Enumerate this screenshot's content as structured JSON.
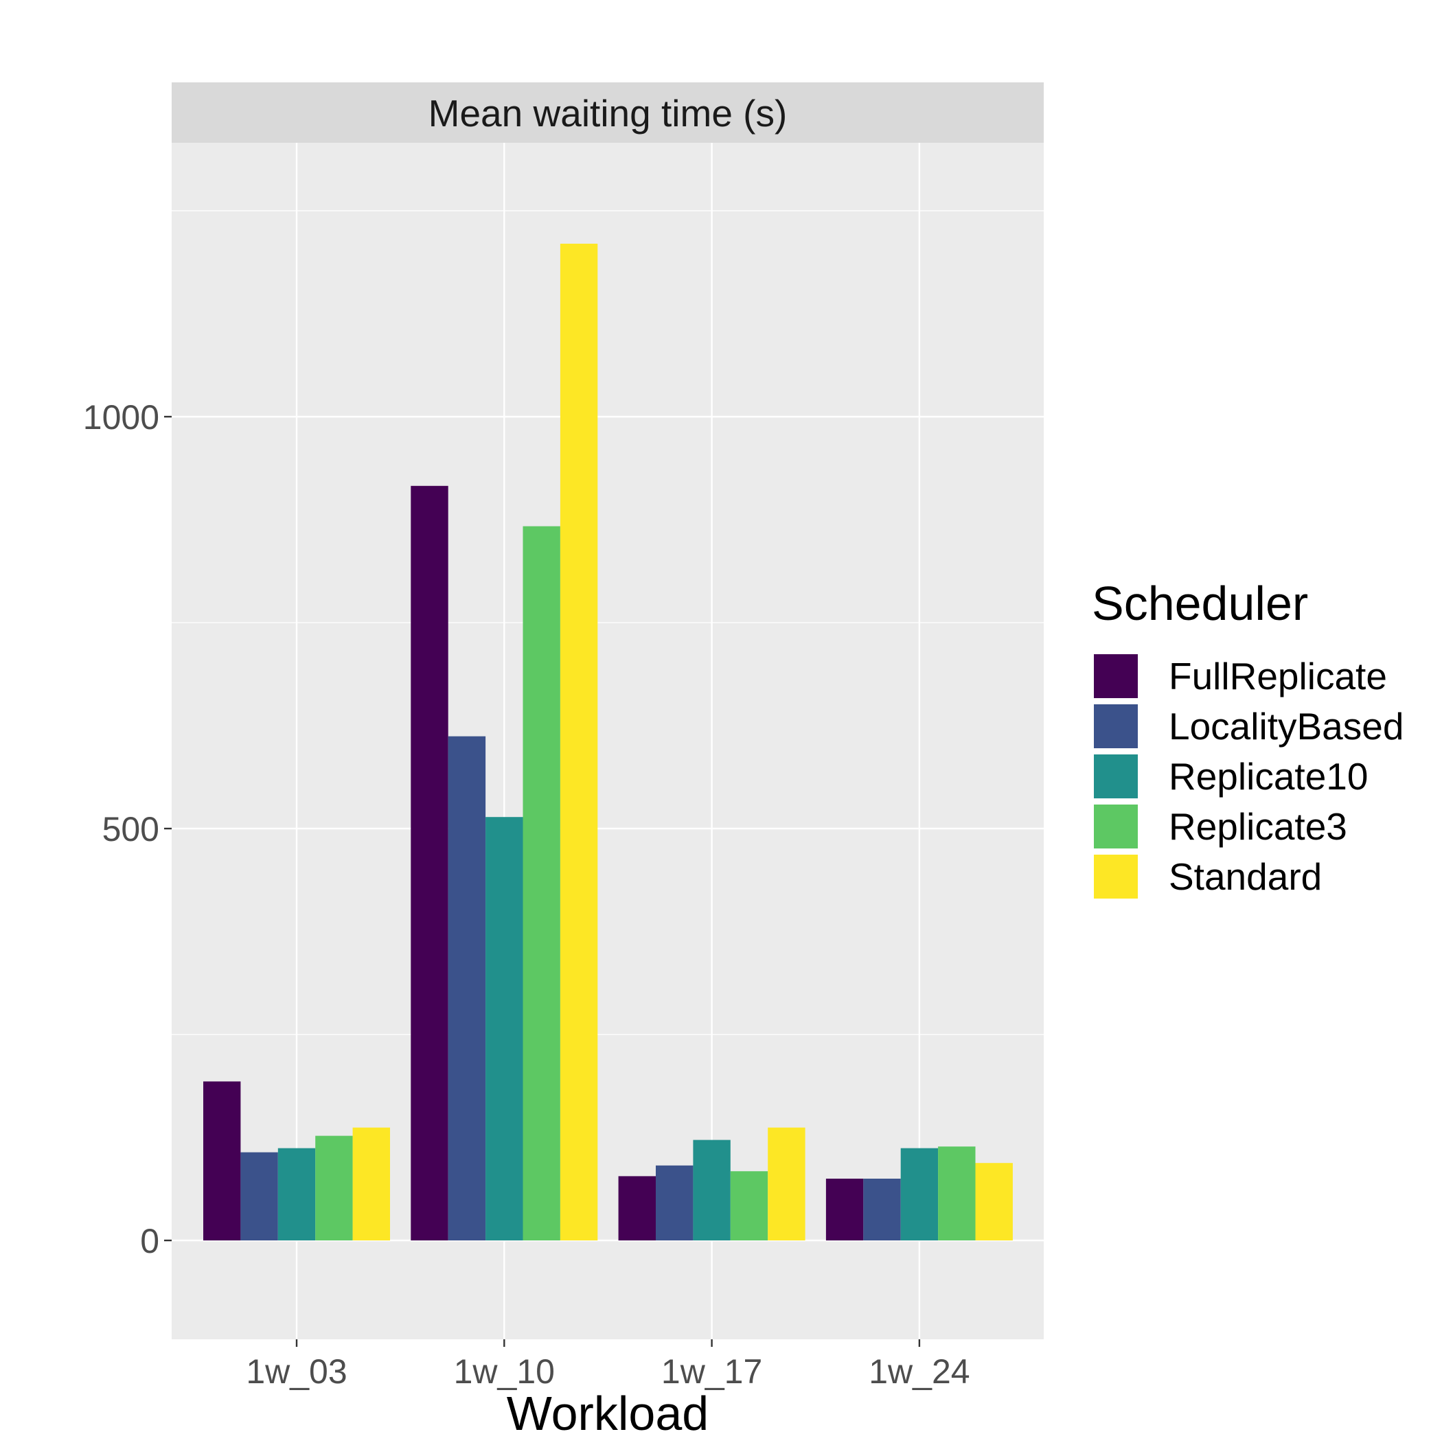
{
  "chart_data": {
    "type": "bar",
    "facet_title": "Mean waiting time (s)",
    "xlabel": "Workload",
    "ylabel": "",
    "categories": [
      "1w_03",
      "1w_10",
      "1w_17",
      "1w_24"
    ],
    "ylim": [
      -120,
      1250
    ],
    "yticks": [
      0,
      500,
      1000
    ],
    "grid": true,
    "legend": {
      "title": "Scheduler",
      "position": "right"
    },
    "series": [
      {
        "name": "FullReplicate",
        "color": "#440154",
        "values": [
          193,
          916,
          78,
          75
        ]
      },
      {
        "name": "LocalityBased",
        "color": "#3B528B",
        "values": [
          107,
          612,
          91,
          75
        ]
      },
      {
        "name": "Replicate10",
        "color": "#21908C",
        "values": [
          112,
          514,
          122,
          112
        ]
      },
      {
        "name": "Replicate3",
        "color": "#5DC863",
        "values": [
          127,
          867,
          84,
          114
        ]
      },
      {
        "name": "Standard",
        "color": "#FDE725",
        "values": [
          137,
          1210,
          137,
          94
        ]
      }
    ]
  }
}
